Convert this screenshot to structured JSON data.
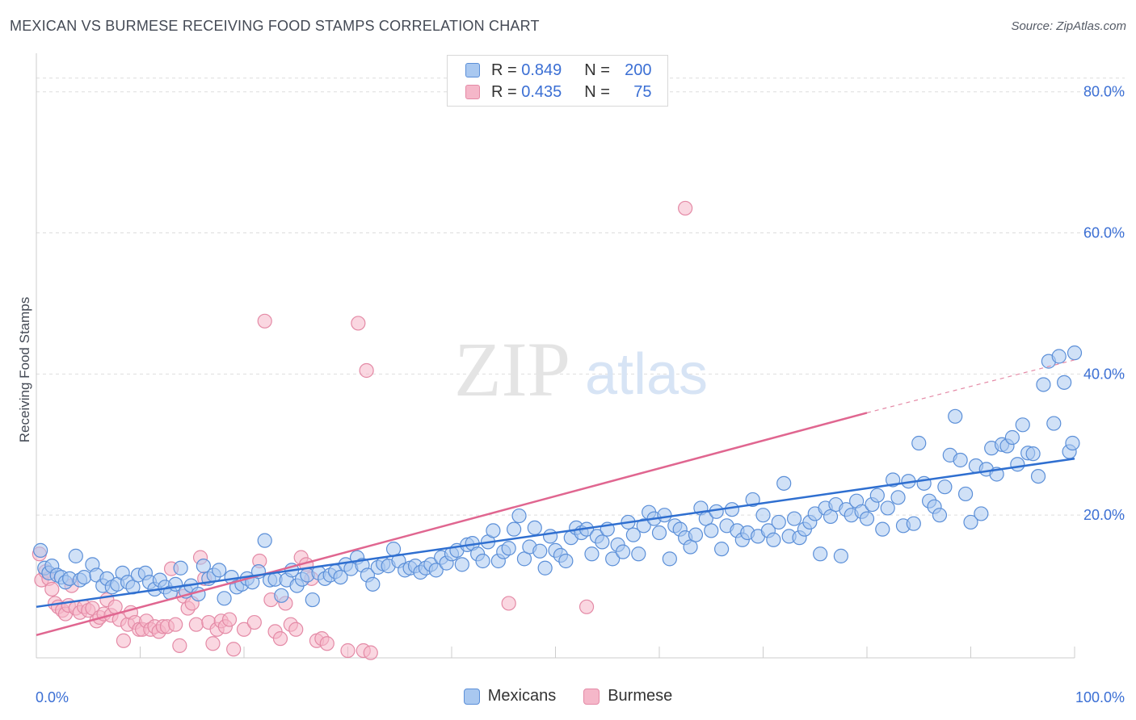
{
  "title": "MEXICAN VS BURMESE RECEIVING FOOD STAMPS CORRELATION CHART",
  "source": "Source: ZipAtlas.com",
  "watermark": {
    "zip": "ZIP",
    "atlas": "atlas"
  },
  "legend": {
    "rows": [
      {
        "r_label": "R = ",
        "r_value": "0.849",
        "n_label": "N = ",
        "n_value": "200"
      },
      {
        "r_label": "R = ",
        "r_value": "0.435",
        "n_label": "N = ",
        "n_value": "75"
      }
    ]
  },
  "bottom_legend": [
    "Mexicans",
    "Burmese"
  ],
  "colors": {
    "mexicans_fill": "#a9c8f0",
    "mexicans_stroke": "#5b8fd8",
    "mexicans_line": "#2f6fd0",
    "burmese_fill": "#f5b7c9",
    "burmese_stroke": "#e48aa6",
    "burmese_line": "#e06690",
    "axis_label": "#3b6fd4",
    "grid": "#dddddd"
  },
  "chart_data": {
    "type": "scatter",
    "title": "MEXICAN VS BURMESE RECEIVING FOOD STAMPS CORRELATION CHART",
    "xlabel": "",
    "ylabel": "Receiving Food Stamps",
    "xlim": [
      0,
      100
    ],
    "ylim": [
      0,
      85
    ],
    "x_tick_labels": [
      "0.0%",
      "100.0%"
    ],
    "y_ticks": [
      20,
      40,
      60,
      80
    ],
    "y_tick_labels": [
      "20.0%",
      "40.0%",
      "60.0%",
      "80.0%"
    ],
    "grid": true,
    "legend_position": "top-center",
    "series": [
      {
        "name": "Mexicans",
        "r": 0.849,
        "n": 200,
        "trend": {
          "x": [
            0,
            100
          ],
          "y": [
            7.0,
            28.0
          ]
        },
        "points": [
          [
            0.4,
            15.0
          ],
          [
            0.8,
            12.5
          ],
          [
            1.2,
            11.8
          ],
          [
            1.5,
            12.8
          ],
          [
            2.0,
            11.5
          ],
          [
            2.4,
            11.2
          ],
          [
            2.8,
            10.5
          ],
          [
            3.2,
            11.0
          ],
          [
            3.8,
            14.2
          ],
          [
            4.2,
            10.8
          ],
          [
            4.6,
            11.2
          ],
          [
            5.4,
            13.0
          ],
          [
            5.8,
            11.5
          ],
          [
            6.4,
            10.0
          ],
          [
            6.8,
            11.0
          ],
          [
            7.3,
            9.8
          ],
          [
            7.8,
            10.2
          ],
          [
            8.3,
            11.8
          ],
          [
            8.8,
            10.5
          ],
          [
            9.3,
            9.8
          ],
          [
            9.8,
            11.5
          ],
          [
            10.5,
            11.8
          ],
          [
            10.9,
            10.5
          ],
          [
            11.4,
            9.5
          ],
          [
            11.9,
            10.8
          ],
          [
            12.4,
            9.8
          ],
          [
            12.9,
            9.0
          ],
          [
            13.4,
            10.2
          ],
          [
            13.9,
            12.5
          ],
          [
            14.4,
            9.2
          ],
          [
            14.9,
            10.0
          ],
          [
            15.6,
            8.8
          ],
          [
            16.1,
            12.8
          ],
          [
            16.6,
            11.0
          ],
          [
            17.1,
            11.5
          ],
          [
            17.6,
            12.2
          ],
          [
            18.1,
            8.2
          ],
          [
            18.8,
            11.2
          ],
          [
            19.3,
            9.8
          ],
          [
            19.8,
            10.2
          ],
          [
            20.3,
            11.0
          ],
          [
            20.8,
            10.5
          ],
          [
            21.4,
            12.0
          ],
          [
            22.0,
            16.4
          ],
          [
            22.5,
            10.8
          ],
          [
            23.0,
            10.9
          ],
          [
            23.6,
            8.6
          ],
          [
            24.1,
            10.8
          ],
          [
            24.6,
            12.2
          ],
          [
            25.1,
            10.0
          ],
          [
            25.6,
            10.9
          ],
          [
            26.1,
            11.5
          ],
          [
            26.6,
            8.0
          ],
          [
            27.2,
            11.8
          ],
          [
            27.8,
            11.0
          ],
          [
            28.3,
            11.5
          ],
          [
            28.8,
            12.0
          ],
          [
            29.3,
            11.2
          ],
          [
            29.8,
            13.0
          ],
          [
            30.3,
            12.4
          ],
          [
            30.9,
            14.0
          ],
          [
            31.4,
            12.9
          ],
          [
            31.9,
            11.5
          ],
          [
            32.4,
            10.2
          ],
          [
            32.9,
            12.6
          ],
          [
            33.4,
            13.1
          ],
          [
            33.9,
            12.8
          ],
          [
            34.4,
            15.2
          ],
          [
            34.9,
            13.5
          ],
          [
            35.5,
            12.2
          ],
          [
            36.0,
            12.5
          ],
          [
            36.5,
            12.8
          ],
          [
            37.0,
            11.9
          ],
          [
            37.5,
            12.5
          ],
          [
            38.0,
            13.0
          ],
          [
            38.5,
            12.2
          ],
          [
            39.0,
            14.0
          ],
          [
            39.5,
            13.2
          ],
          [
            40.0,
            14.5
          ],
          [
            40.5,
            15.0
          ],
          [
            41.0,
            13.0
          ],
          [
            41.5,
            15.8
          ],
          [
            42.0,
            16.0
          ],
          [
            42.5,
            14.5
          ],
          [
            43.0,
            13.5
          ],
          [
            43.5,
            16.2
          ],
          [
            44.0,
            17.8
          ],
          [
            44.5,
            13.5
          ],
          [
            45.0,
            14.8
          ],
          [
            45.5,
            15.3
          ],
          [
            46.0,
            18.0
          ],
          [
            46.5,
            19.9
          ],
          [
            47.0,
            13.8
          ],
          [
            47.5,
            15.5
          ],
          [
            48.0,
            18.2
          ],
          [
            48.5,
            14.9
          ],
          [
            49.0,
            12.5
          ],
          [
            49.5,
            17.0
          ],
          [
            50.0,
            15.0
          ],
          [
            50.5,
            14.3
          ],
          [
            51.0,
            13.5
          ],
          [
            51.5,
            16.8
          ],
          [
            52.0,
            18.2
          ],
          [
            52.5,
            17.5
          ],
          [
            53.0,
            18.0
          ],
          [
            53.5,
            14.5
          ],
          [
            54.0,
            17.0
          ],
          [
            54.5,
            16.2
          ],
          [
            55.0,
            18.0
          ],
          [
            55.5,
            13.8
          ],
          [
            56.0,
            15.8
          ],
          [
            56.5,
            14.8
          ],
          [
            57.0,
            19.0
          ],
          [
            57.5,
            17.2
          ],
          [
            58.0,
            14.5
          ],
          [
            58.5,
            18.5
          ],
          [
            59.0,
            20.4
          ],
          [
            59.5,
            19.5
          ],
          [
            60.0,
            17.5
          ],
          [
            60.5,
            20.0
          ],
          [
            61.0,
            13.8
          ],
          [
            61.5,
            18.5
          ],
          [
            62.0,
            18.0
          ],
          [
            62.5,
            16.8
          ],
          [
            63.0,
            15.5
          ],
          [
            63.5,
            17.2
          ],
          [
            64.0,
            21.0
          ],
          [
            64.5,
            19.5
          ],
          [
            65.0,
            17.8
          ],
          [
            65.5,
            20.5
          ],
          [
            66.0,
            15.2
          ],
          [
            66.5,
            18.5
          ],
          [
            67.0,
            20.8
          ],
          [
            67.5,
            17.8
          ],
          [
            68.0,
            16.5
          ],
          [
            68.5,
            17.5
          ],
          [
            69.0,
            22.2
          ],
          [
            69.5,
            17.0
          ],
          [
            70.0,
            20.0
          ],
          [
            70.5,
            17.8
          ],
          [
            71.0,
            16.5
          ],
          [
            71.5,
            19.0
          ],
          [
            72.0,
            24.5
          ],
          [
            72.5,
            17.0
          ],
          [
            73.0,
            19.5
          ],
          [
            73.5,
            16.8
          ],
          [
            74.0,
            18.0
          ],
          [
            74.5,
            19.0
          ],
          [
            75.0,
            20.2
          ],
          [
            75.5,
            14.5
          ],
          [
            76.0,
            21.0
          ],
          [
            76.5,
            19.8
          ],
          [
            77.0,
            21.5
          ],
          [
            77.5,
            14.2
          ],
          [
            78.0,
            20.8
          ],
          [
            78.5,
            20.0
          ],
          [
            79.0,
            22.0
          ],
          [
            79.5,
            20.5
          ],
          [
            80.0,
            19.5
          ],
          [
            80.5,
            21.5
          ],
          [
            81.0,
            22.8
          ],
          [
            81.5,
            18.0
          ],
          [
            82.0,
            21.0
          ],
          [
            82.5,
            25.0
          ],
          [
            83.0,
            22.5
          ],
          [
            83.5,
            18.5
          ],
          [
            84.0,
            24.8
          ],
          [
            84.5,
            18.8
          ],
          [
            85.0,
            30.2
          ],
          [
            85.5,
            24.5
          ],
          [
            86.0,
            22.0
          ],
          [
            86.5,
            21.2
          ],
          [
            87.0,
            20.0
          ],
          [
            87.5,
            24.0
          ],
          [
            88.0,
            28.5
          ],
          [
            88.5,
            34.0
          ],
          [
            89.0,
            27.8
          ],
          [
            89.5,
            23.0
          ],
          [
            90.0,
            19.0
          ],
          [
            90.5,
            27.0
          ],
          [
            91.0,
            20.2
          ],
          [
            91.5,
            26.5
          ],
          [
            92.0,
            29.5
          ],
          [
            92.5,
            25.8
          ],
          [
            93.0,
            30.0
          ],
          [
            93.5,
            29.8
          ],
          [
            94.0,
            31.0
          ],
          [
            94.5,
            27.2
          ],
          [
            95.0,
            32.8
          ],
          [
            95.5,
            28.8
          ],
          [
            96.0,
            28.7
          ],
          [
            96.5,
            25.5
          ],
          [
            97.0,
            38.5
          ],
          [
            97.5,
            41.8
          ],
          [
            98.0,
            33.0
          ],
          [
            98.5,
            42.5
          ],
          [
            99.0,
            38.8
          ],
          [
            99.5,
            29.0
          ],
          [
            99.8,
            30.2
          ],
          [
            100.0,
            43.0
          ]
        ]
      },
      {
        "name": "Burmese",
        "r": 0.435,
        "n": 75,
        "trend": {
          "x": [
            0,
            80
          ],
          "y": [
            3.0,
            34.5
          ]
        },
        "trend_dashed": {
          "x": [
            80,
            100
          ],
          "y": [
            34.5,
            42.0
          ]
        },
        "points": [
          [
            0.3,
            14.5
          ],
          [
            0.5,
            10.8
          ],
          [
            0.9,
            12.0
          ],
          [
            1.2,
            11.0
          ],
          [
            1.5,
            9.5
          ],
          [
            1.8,
            7.5
          ],
          [
            2.1,
            7.0
          ],
          [
            2.5,
            6.5
          ],
          [
            2.8,
            6.0
          ],
          [
            3.1,
            7.2
          ],
          [
            3.4,
            10.0
          ],
          [
            3.8,
            6.8
          ],
          [
            4.2,
            6.2
          ],
          [
            4.6,
            7.0
          ],
          [
            5.0,
            6.5
          ],
          [
            5.4,
            6.8
          ],
          [
            5.8,
            5.0
          ],
          [
            6.1,
            5.5
          ],
          [
            6.5,
            6.0
          ],
          [
            6.8,
            8.0
          ],
          [
            7.2,
            5.8
          ],
          [
            7.6,
            7.0
          ],
          [
            8.0,
            5.2
          ],
          [
            8.4,
            2.2
          ],
          [
            8.8,
            4.5
          ],
          [
            9.1,
            6.2
          ],
          [
            9.5,
            4.8
          ],
          [
            9.9,
            3.8
          ],
          [
            10.2,
            3.8
          ],
          [
            10.6,
            5.0
          ],
          [
            11.0,
            3.8
          ],
          [
            11.4,
            4.2
          ],
          [
            11.8,
            3.5
          ],
          [
            12.2,
            4.2
          ],
          [
            12.6,
            4.2
          ],
          [
            13.0,
            12.4
          ],
          [
            13.4,
            4.5
          ],
          [
            13.8,
            1.5
          ],
          [
            14.2,
            8.5
          ],
          [
            14.6,
            6.8
          ],
          [
            15.0,
            7.5
          ],
          [
            15.4,
            4.5
          ],
          [
            15.8,
            14.0
          ],
          [
            16.2,
            11.0
          ],
          [
            16.6,
            4.8
          ],
          [
            17.0,
            1.8
          ],
          [
            17.4,
            3.8
          ],
          [
            17.8,
            5.0
          ],
          [
            18.2,
            4.2
          ],
          [
            18.6,
            5.2
          ],
          [
            19.0,
            1.0
          ],
          [
            20.0,
            3.8
          ],
          [
            21.0,
            4.8
          ],
          [
            21.5,
            13.5
          ],
          [
            22.0,
            47.5
          ],
          [
            22.6,
            8.0
          ],
          [
            23.0,
            3.5
          ],
          [
            23.5,
            2.5
          ],
          [
            24.0,
            7.5
          ],
          [
            24.5,
            4.5
          ],
          [
            25.0,
            3.8
          ],
          [
            25.5,
            14.0
          ],
          [
            26.0,
            13.0
          ],
          [
            26.5,
            11.0
          ],
          [
            27.0,
            2.2
          ],
          [
            27.5,
            2.5
          ],
          [
            28.0,
            1.8
          ],
          [
            30.0,
            0.8
          ],
          [
            31.0,
            47.2
          ],
          [
            31.5,
            0.8
          ],
          [
            31.8,
            40.5
          ],
          [
            32.2,
            0.5
          ],
          [
            45.5,
            7.5
          ],
          [
            53.0,
            7.0
          ],
          [
            62.5,
            63.5
          ]
        ]
      }
    ]
  }
}
